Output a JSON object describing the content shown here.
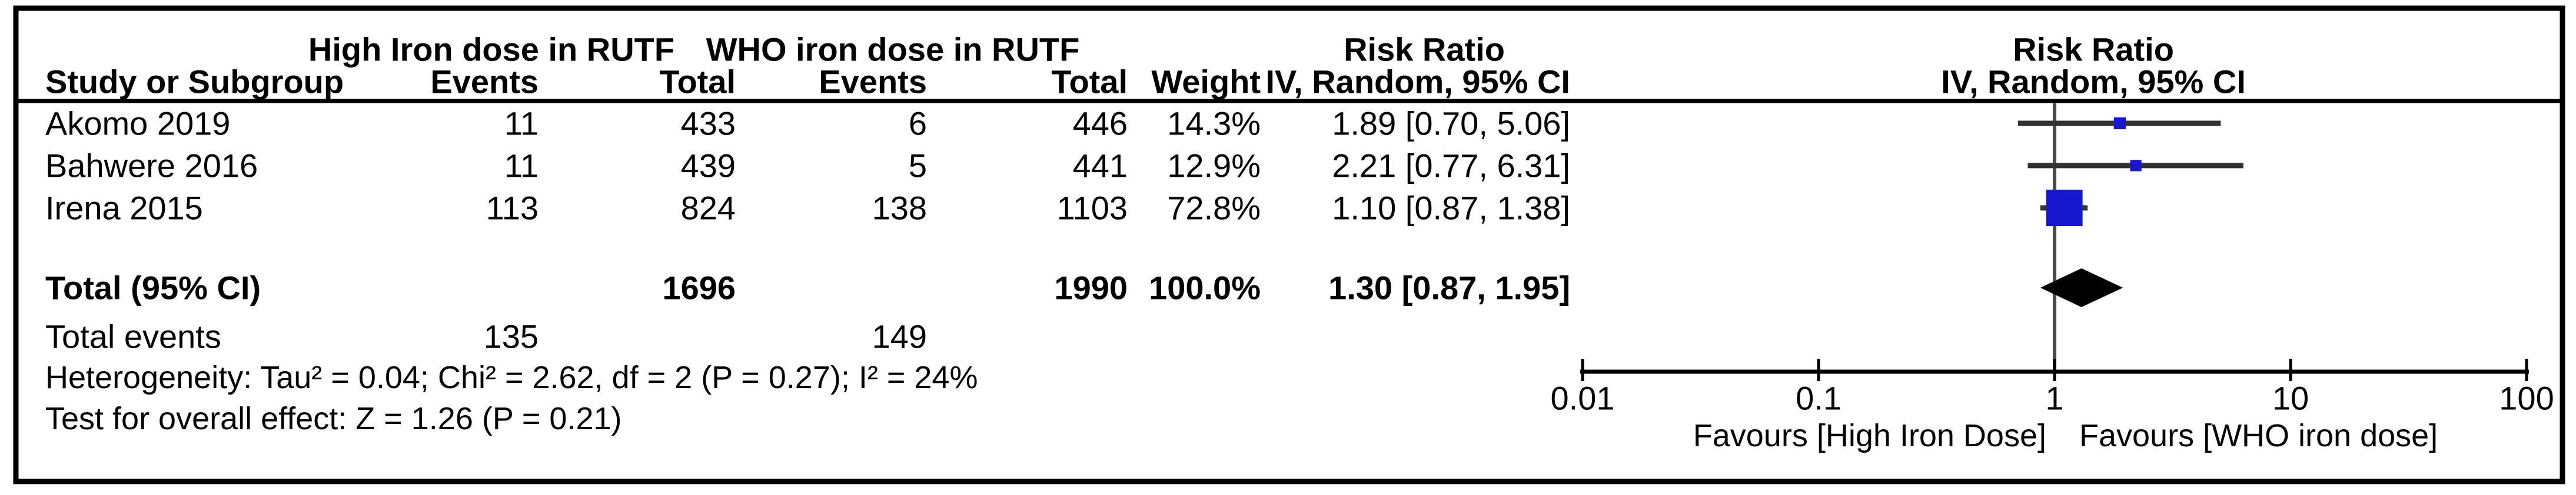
{
  "header": {
    "group1_title": "High Iron dose in RUTF",
    "group2_title": "WHO iron dose in RUTF",
    "risk_ratio_title": "Risk Ratio",
    "method_title": "IV, Random, 95% CI",
    "plot_risk_ratio_title": "Risk Ratio",
    "plot_method_title": "IV, Random, 95% CI",
    "study_col": "Study or Subgroup",
    "events_col": "Events",
    "total_col": "Total",
    "weight_col": "Weight"
  },
  "rows": [
    {
      "study": "Akomo 2019",
      "events1": "11",
      "total1": "433",
      "events2": "6",
      "total2": "446",
      "weight": "14.3%",
      "rr_text": "1.89 [0.70, 5.06]"
    },
    {
      "study": "Bahwere 2016",
      "events1": "11",
      "total1": "439",
      "events2": "5",
      "total2": "441",
      "weight": "12.9%",
      "rr_text": "2.21 [0.77, 6.31]"
    },
    {
      "study": "Irena 2015",
      "events1": "113",
      "total1": "824",
      "events2": "138",
      "total2": "1103",
      "weight": "72.8%",
      "rr_text": "1.10 [0.87, 1.38]"
    }
  ],
  "total_row": {
    "label": "Total (95% CI)",
    "total1": "1696",
    "total2": "1990",
    "weight": "100.0%",
    "rr_text": "1.30 [0.87, 1.95]"
  },
  "total_events_row": {
    "label": "Total events",
    "events1": "135",
    "events2": "149"
  },
  "heterogeneity_text": "Heterogeneity: Tau² = 0.04; Chi² = 2.62, df = 2 (P = 0.27); I² = 24%",
  "overall_effect_text": "Test for overall effect: Z = 1.26 (P = 0.21)",
  "chart_data": {
    "type": "forest",
    "x_scale": "log",
    "xlim": [
      0.01,
      100
    ],
    "null_line": 1,
    "title": "Risk Ratio",
    "subtitle": "IV, Random, 95% CI",
    "x_ticks": [
      {
        "value": 0.01,
        "label": "0.01"
      },
      {
        "value": 0.1,
        "label": "0.1"
      },
      {
        "value": 1,
        "label": "1"
      },
      {
        "value": 10,
        "label": "10"
      },
      {
        "value": 100,
        "label": "100"
      }
    ],
    "studies": [
      {
        "name": "Akomo 2019",
        "rr": 1.89,
        "ci_low": 0.7,
        "ci_high": 5.06,
        "weight_pct": 14.3
      },
      {
        "name": "Bahwere 2016",
        "rr": 2.21,
        "ci_low": 0.77,
        "ci_high": 6.31,
        "weight_pct": 12.9
      },
      {
        "name": "Irena 2015",
        "rr": 1.1,
        "ci_low": 0.87,
        "ci_high": 1.38,
        "weight_pct": 72.8
      }
    ],
    "total": {
      "rr": 1.3,
      "ci_low": 0.87,
      "ci_high": 1.95,
      "weight_pct": 100.0
    },
    "favours_left": "Favours [High Iron Dose]",
    "favours_right": "Favours [WHO iron dose]",
    "marker_color": "#1717cf",
    "ci_line_color": "#333333",
    "diamond_color": "#000000",
    "null_line_color": "#4a4a4a"
  }
}
